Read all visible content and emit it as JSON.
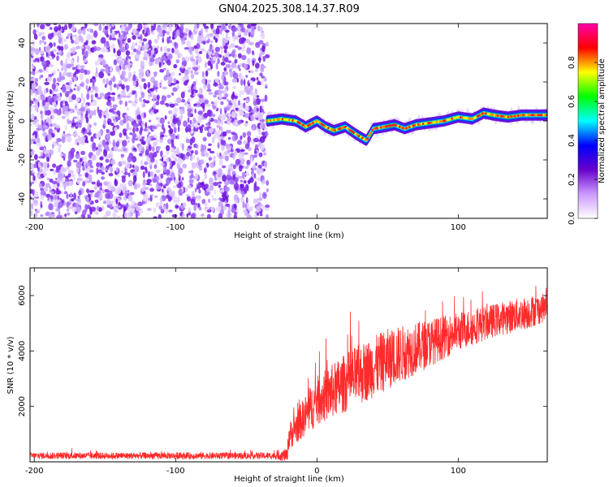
{
  "title": "GN04.2025.308.14.37.R09",
  "chart_data": [
    {
      "type": "heatmap",
      "title": "",
      "xlabel": "Height of straight line (km)",
      "ylabel": "Frequency (Hz)",
      "xlim": [
        -203,
        163
      ],
      "ylim": [
        -50,
        50
      ],
      "xticks": [
        "-200",
        "-100",
        "0",
        "100"
      ],
      "yticks": [
        "-40",
        "-20",
        "0",
        "20",
        "40"
      ],
      "noise_region_x": [
        -203,
        -35
      ],
      "ridge": {
        "x": [
          -35,
          -25,
          -15,
          -8,
          0,
          6,
          12,
          20,
          28,
          35,
          40,
          48,
          55,
          62,
          70,
          80,
          90,
          100,
          110,
          118,
          125,
          135,
          145,
          155,
          163
        ],
        "y": [
          0,
          1,
          0,
          -3,
          0,
          -3,
          -5,
          -3,
          -7,
          -10,
          -4,
          -3,
          -2,
          -4,
          -2,
          -1,
          0,
          2,
          1,
          4,
          3,
          2,
          3,
          3,
          3
        ]
      },
      "colorbar": {
        "label": "Normalized spectral amplitude",
        "range": [
          0,
          1
        ],
        "ticks": [
          "0.0",
          "0.2",
          "0.4",
          "0.6",
          "0.8"
        ],
        "colors": [
          "#ffffff",
          "#cc99ff",
          "#6600cc",
          "#0000ff",
          "#00ffff",
          "#00ff00",
          "#ffff00",
          "#ff0000",
          "#ff00aa"
        ]
      }
    },
    {
      "type": "line",
      "title": "",
      "xlabel": "Height of straight line (km)",
      "ylabel": "SNR (10 * v/v)",
      "xlim": [
        -203,
        163
      ],
      "ylim": [
        0,
        7000
      ],
      "xticks": [
        "-200",
        "-100",
        "0",
        "100"
      ],
      "yticks": [
        "2000",
        "4000",
        "6000"
      ],
      "series": [
        {
          "color": "#ff2a2a",
          "trend_x": [
            -203,
            -30,
            -21,
            -20,
            0,
            25,
            50,
            75,
            100,
            125,
            150,
            163
          ],
          "trend_y": [
            220,
            220,
            240,
            900,
            2200,
            3000,
            3700,
            4200,
            4700,
            5100,
            5400,
            5600
          ],
          "noise_amplitude": [
            120,
            120,
            250,
            500,
            900,
            1100,
            1100,
            900,
            700,
            600,
            600,
            500
          ]
        }
      ]
    }
  ]
}
